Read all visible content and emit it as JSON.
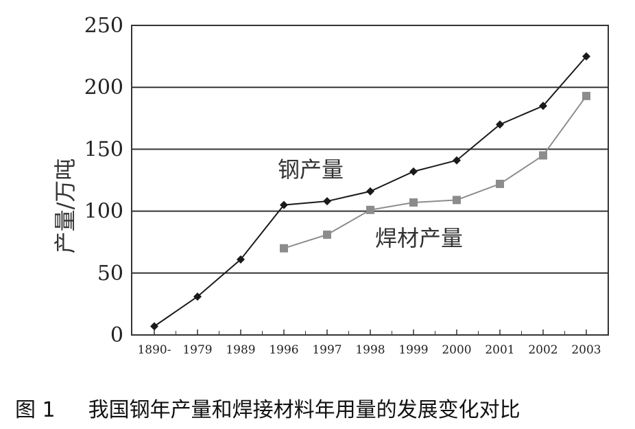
{
  "chart_data": {
    "type": "line",
    "categories": [
      "1890-",
      "1979",
      "1989",
      "1996",
      "1997",
      "1998",
      "1999",
      "2000",
      "2001",
      "2002",
      "2003"
    ],
    "series": [
      {
        "name": "钢产量",
        "values": [
          7,
          31,
          61,
          105,
          108,
          116,
          132,
          141,
          170,
          185,
          225
        ],
        "color": "#1a1a1a",
        "marker": "diamond"
      },
      {
        "name": "焊材产量",
        "values": [
          null,
          null,
          null,
          70,
          81,
          101,
          107,
          109,
          122,
          145,
          193
        ],
        "color": "#8c8c8c",
        "marker": "square"
      }
    ],
    "ylabel": "产量/万吨",
    "ylim": [
      0,
      250
    ],
    "yticks": [
      0,
      50,
      100,
      150,
      200,
      250
    ],
    "grid": "horizontal",
    "legend": "inline labels"
  },
  "caption": {
    "number": "图 1",
    "text": "我国钢年产量和焊接材料年用量的发展变化对比"
  }
}
